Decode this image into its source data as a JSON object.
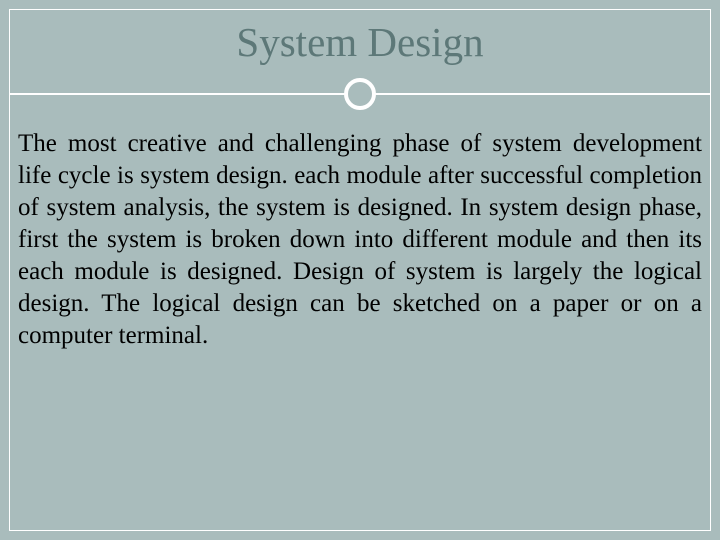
{
  "slide": {
    "title": "System Design",
    "body": "The most creative and challenging phase of system development life cycle is system design. each module after successful completion of system analysis, the system is designed. In system design phase, first the system is broken down into different module and then its each module is designed. Design of system is largely the logical design. The logical design can be sketched on a paper or on a computer terminal."
  },
  "styling": {
    "background_color": "#a9bcbc",
    "frame_border_color": "#ffffff",
    "title_color": "#5d7878",
    "title_fontsize": 41,
    "body_color": "#000000",
    "body_fontsize": 25,
    "divider_color": "#ffffff",
    "circle_border_color": "#ffffff",
    "circle_border_width": 4
  }
}
